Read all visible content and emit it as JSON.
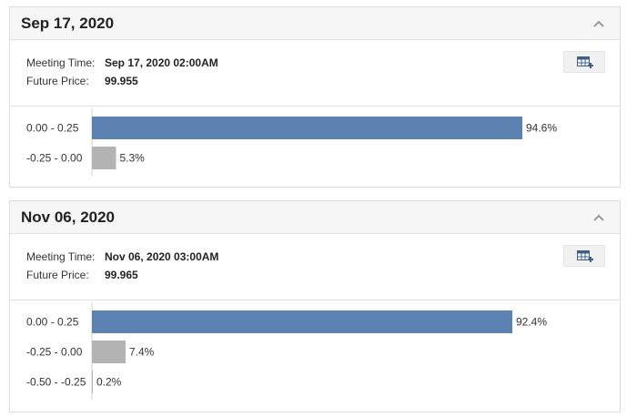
{
  "meetings": [
    {
      "date": "Sep 17, 2020",
      "meeting_time_label": "Meeting Time:",
      "meeting_time": "Sep 17, 2020 02:00AM",
      "future_price_label": "Future Price:",
      "future_price": "99.955"
    },
    {
      "date": "Nov 06, 2020",
      "meeting_time_label": "Meeting Time:",
      "meeting_time": "Nov 06, 2020 03:00AM",
      "future_price_label": "Future Price:",
      "future_price": "99.965"
    }
  ],
  "icons": {
    "collapse": "chevron-up-icon",
    "export": "table-export-icon"
  },
  "colors": {
    "primary_bar": "#5b82b0",
    "secondary_bar": "#b3b3b3"
  },
  "chart_data": [
    {
      "type": "bar",
      "orientation": "horizontal",
      "categories": [
        "0.00 - 0.25",
        "-0.25 - 0.00"
      ],
      "values": [
        94.6,
        5.3
      ],
      "value_labels": [
        "94.6%",
        "5.3%"
      ],
      "xlim": [
        0,
        100
      ]
    },
    {
      "type": "bar",
      "orientation": "horizontal",
      "categories": [
        "0.00 - 0.25",
        "-0.25 - 0.00",
        "-0.50 - -0.25"
      ],
      "values": [
        92.4,
        7.4,
        0.2
      ],
      "value_labels": [
        "92.4%",
        "7.4%",
        "0.2%"
      ],
      "xlim": [
        0,
        100
      ]
    }
  ]
}
